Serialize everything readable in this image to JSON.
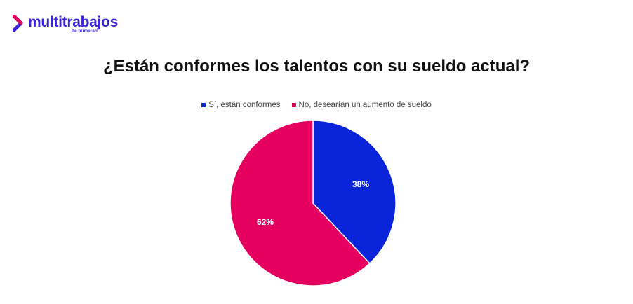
{
  "logo": {
    "brand": "multitrabajos",
    "sub": "de bumeran"
  },
  "chart_data": {
    "type": "pie",
    "title": "¿Están conformes los talentos con su sueldo actual?",
    "categories": [
      "Sí, están conformes",
      "No, desearían un aumento de sueldo"
    ],
    "values": [
      38,
      62
    ],
    "data_labels": [
      "38%",
      "62%"
    ],
    "colors": [
      "#0a24d9",
      "#e6005f"
    ],
    "legend_position": "top"
  }
}
